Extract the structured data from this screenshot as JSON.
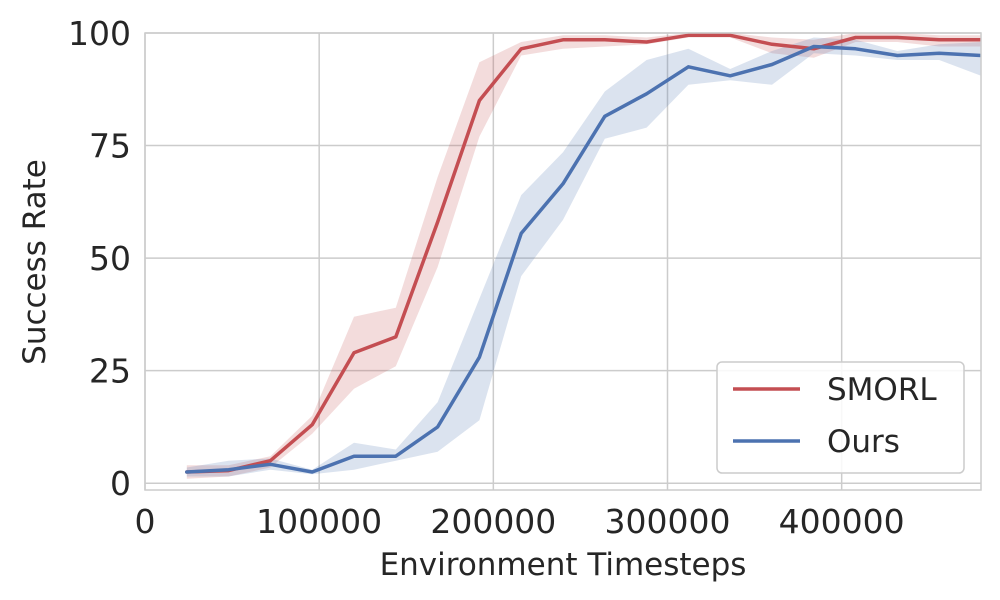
{
  "chart_data": {
    "type": "line",
    "title": "",
    "xlabel": "Environment Timesteps",
    "ylabel": "Success Rate",
    "xlim": [
      0,
      480000
    ],
    "ylim": [
      -1.5,
      100
    ],
    "xticks": [
      0,
      100000,
      200000,
      300000,
      400000
    ],
    "xtick_labels": [
      "0",
      "100000",
      "200000",
      "300000",
      "400000"
    ],
    "yticks": [
      0,
      25,
      50,
      75,
      100
    ],
    "ytick_labels": [
      "0",
      "25",
      "50",
      "75",
      "100"
    ],
    "grid": true,
    "legend_position": "lower-right",
    "series": [
      {
        "name": "SMORL",
        "color": "#c44e52",
        "x": [
          24000,
          48000,
          72000,
          96000,
          120000,
          144000,
          168000,
          192000,
          216000,
          240000,
          264000,
          288000,
          312000,
          336000,
          360000,
          384000,
          408000,
          432000,
          456000,
          480000
        ],
        "y": [
          2.5,
          2.8,
          5,
          13,
          29,
          32.5,
          58,
          85,
          96.5,
          98.5,
          98.5,
          98,
          99.5,
          99.5,
          97.5,
          96.5,
          99,
          99,
          98.5,
          98.5
        ],
        "lower": [
          1,
          1.5,
          3.5,
          11,
          21,
          26,
          48,
          77,
          95,
          96.5,
          97,
          97.5,
          99,
          99,
          95.5,
          94.5,
          98,
          98,
          97,
          97
        ],
        "upper": [
          4,
          4,
          6,
          15,
          37,
          39,
          68,
          93.5,
          98,
          99.5,
          99.5,
          99,
          100,
          100,
          99,
          98.5,
          100,
          100,
          99.5,
          99.5
        ]
      },
      {
        "name": "Ours",
        "color": "#4c72b0",
        "x": [
          24000,
          48000,
          72000,
          96000,
          120000,
          144000,
          168000,
          192000,
          216000,
          240000,
          264000,
          288000,
          312000,
          336000,
          360000,
          384000,
          408000,
          432000,
          456000,
          480000
        ],
        "y": [
          2.5,
          3,
          4.2,
          2.5,
          6,
          6,
          12.5,
          28,
          55.5,
          66.5,
          81.5,
          86.5,
          92.5,
          90.5,
          93,
          97,
          96.5,
          95,
          95.5,
          95
        ],
        "lower": [
          1.5,
          1.5,
          3,
          2,
          3,
          5,
          7,
          14,
          46,
          58.5,
          76.5,
          79,
          88.5,
          89.5,
          88.5,
          95.5,
          95,
          94,
          94,
          90.5
        ],
        "upper": [
          3.5,
          5,
          5.5,
          3,
          9,
          7.5,
          18,
          41,
          64,
          73.5,
          87,
          94,
          96.5,
          92,
          96,
          99,
          98.5,
          96,
          97.5,
          98
        ]
      }
    ]
  }
}
